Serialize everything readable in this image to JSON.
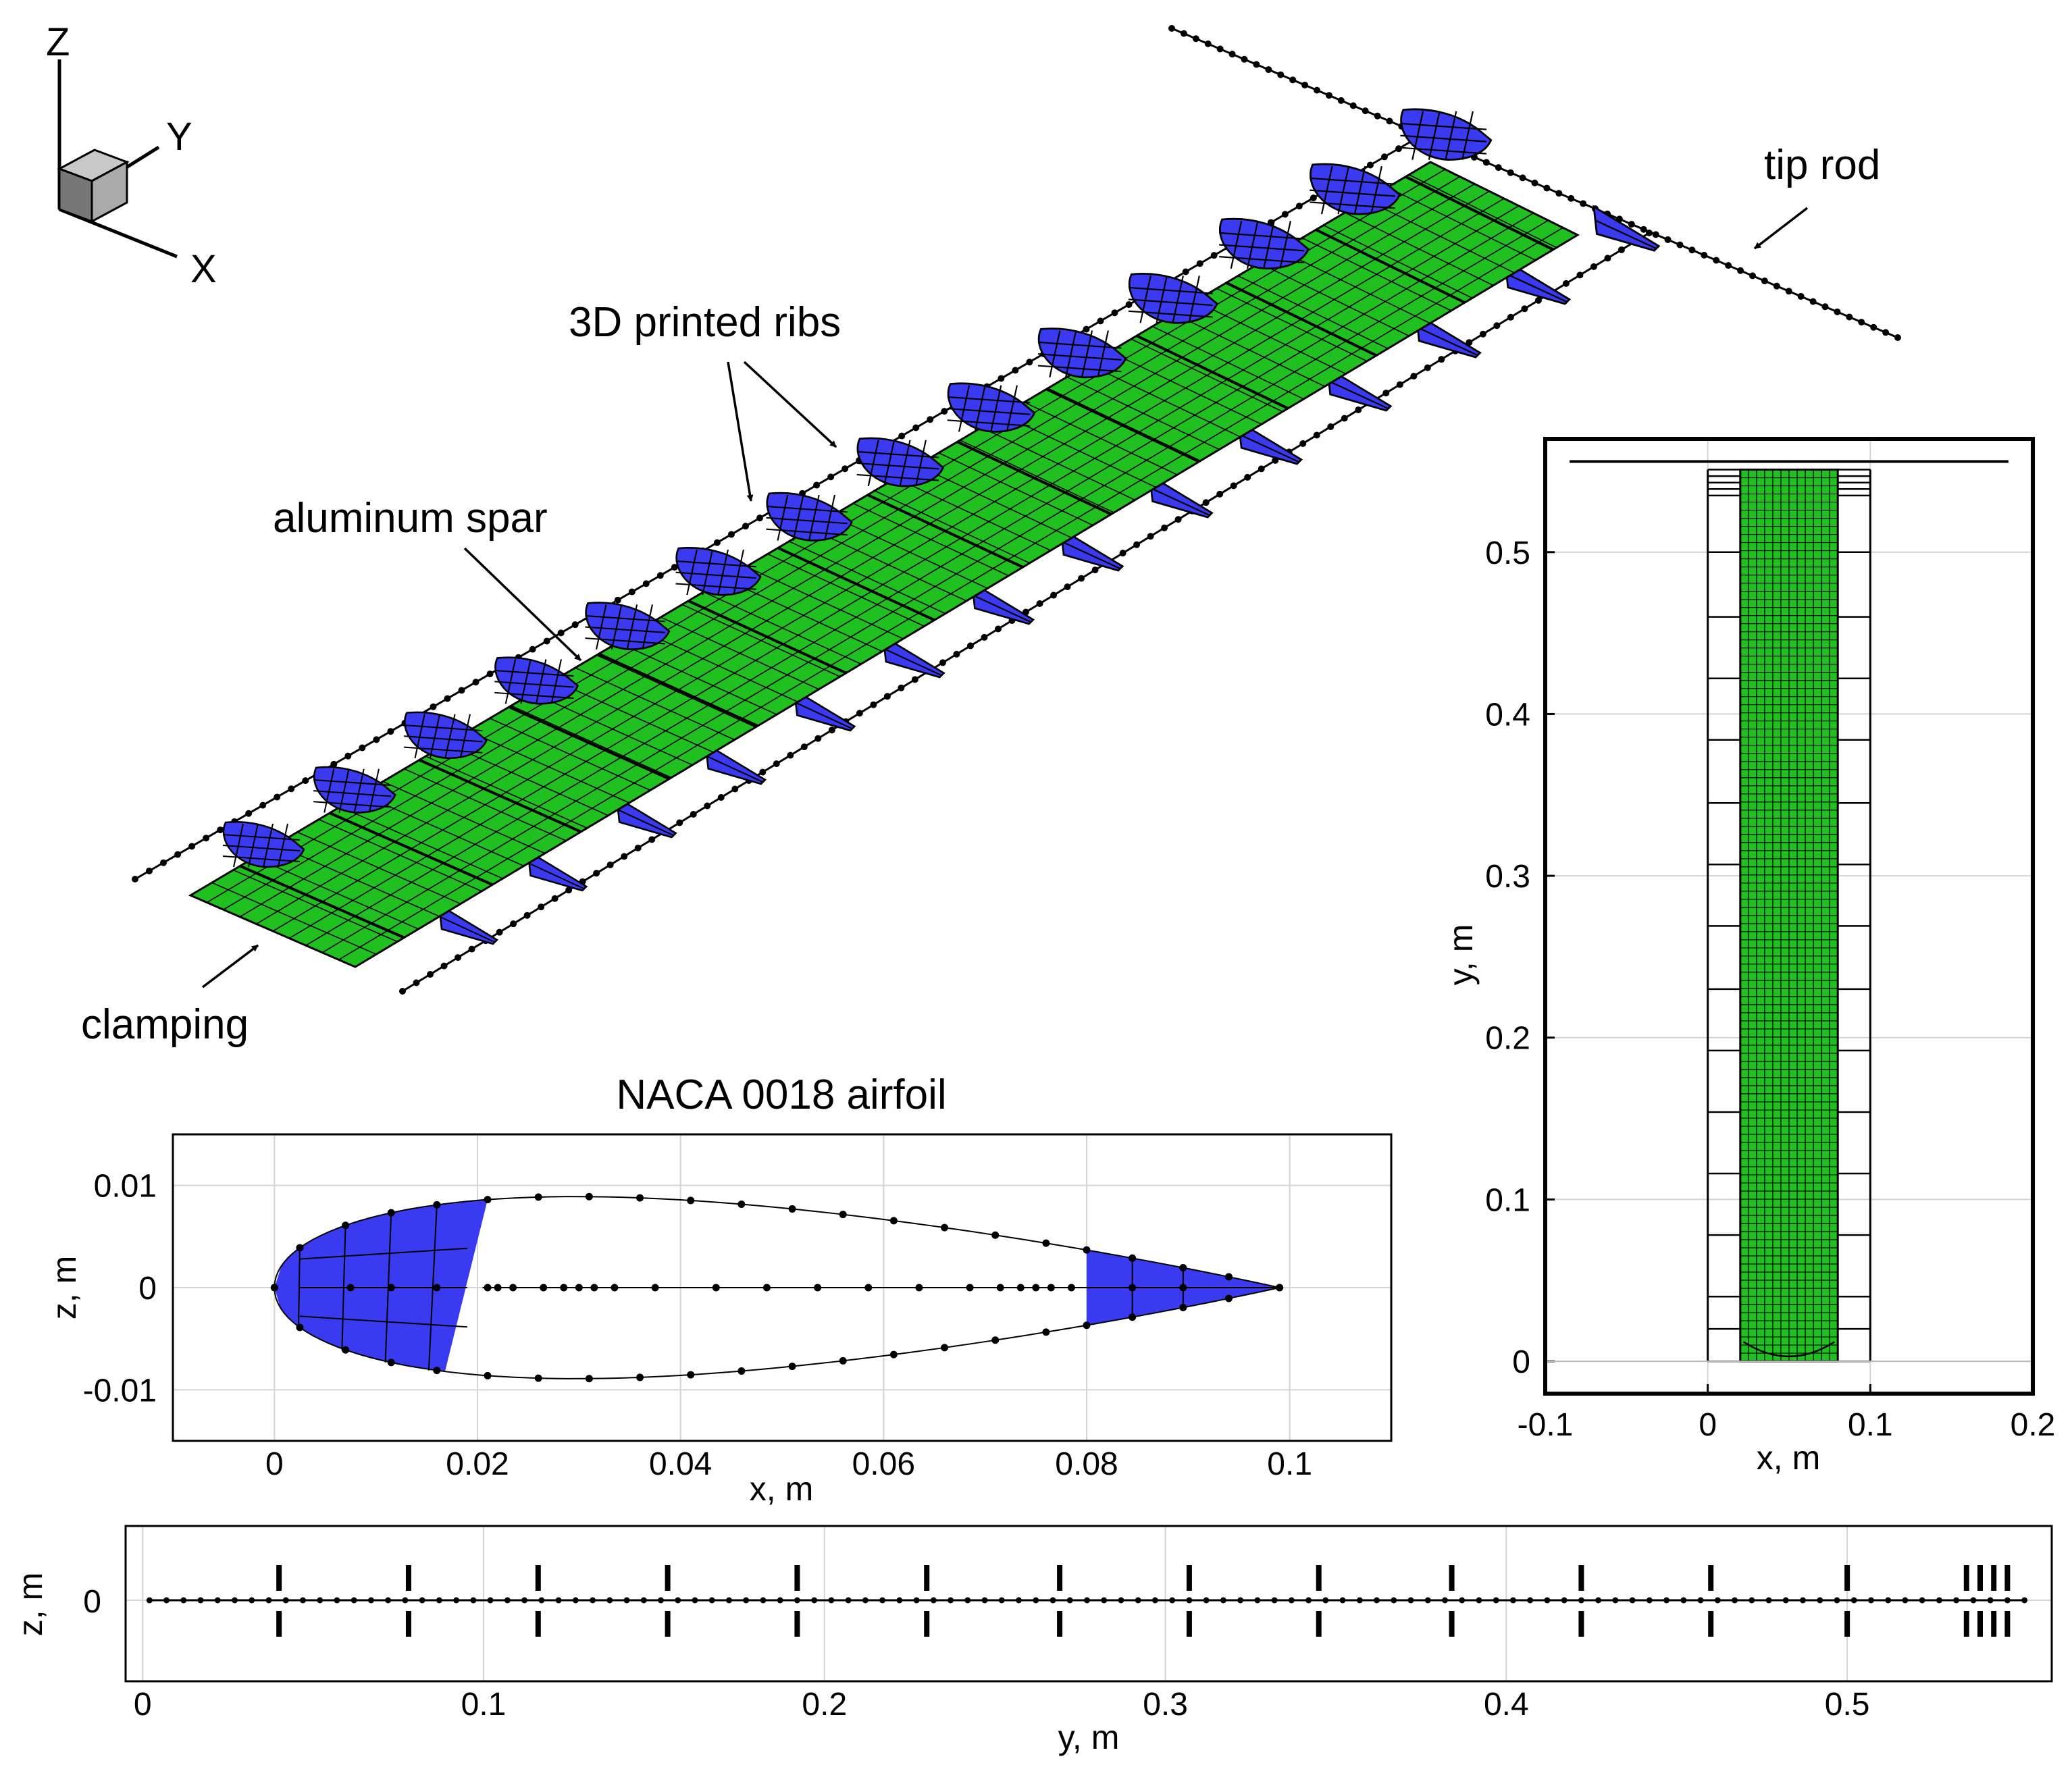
{
  "colors": {
    "rib": "#3a3af0",
    "spar": "#20c020",
    "spar_label": "#22c622",
    "rib_label": "#3535e0",
    "ink": "#000000"
  },
  "view3d": {
    "axis_z": "Z",
    "axis_y": "Y",
    "axis_x": "X",
    "label_ribs": "3D printed ribs",
    "label_spar": "aluminum spar",
    "label_clamping": "clamping",
    "label_tip_rod": "tip rod",
    "rib_count": 14
  },
  "airfoil_plot": {
    "title": "NACA 0018 airfoil",
    "xlabel": "x, m",
    "ylabel": "z, m",
    "xlim": [
      -0.01,
      0.11
    ],
    "ylim": [
      -0.015,
      0.015
    ],
    "xticks": [
      "0",
      "0.02",
      "0.04",
      "0.06",
      "0.08",
      "0.1"
    ],
    "yticks": [
      "0.01",
      "0",
      "-0.01"
    ],
    "chord": 0.099,
    "thickness_ratio": 0.18,
    "front_rib_x": [
      0,
      0.021
    ],
    "rear_rib_x": [
      0.08,
      0.099
    ]
  },
  "planform_plot": {
    "xlabel": "x, m",
    "ylabel": "y, m",
    "xlim": [
      -0.1,
      0.2
    ],
    "ylim": [
      -0.02,
      0.57
    ],
    "xticks": [
      "-0.1",
      "0",
      "0.1",
      "0.2"
    ],
    "yticks": [
      "0.5",
      "0.4",
      "0.3",
      "0.2",
      "0.1",
      "0"
    ],
    "spar_x": [
      0.02,
      0.08
    ],
    "spar_y": [
      0,
      0.551
    ],
    "rod_x": [
      0,
      0.1
    ],
    "tip_rod_x": [
      -0.085,
      0.185
    ],
    "tip_rod_y": 0.556
  },
  "span_plot": {
    "xlabel": "y, m",
    "ylabel": "z, m",
    "xlim": [
      -0.005,
      0.56
    ],
    "xticks": [
      "0",
      "0.1",
      "0.2",
      "0.3",
      "0.4",
      "0.5"
    ],
    "yticks": [
      "0"
    ],
    "rib_y": [
      0.04,
      0.078,
      0.116,
      0.154,
      0.192,
      0.23,
      0.269,
      0.307,
      0.345,
      0.384,
      0.422,
      0.46,
      0.5,
      0.535,
      0.539,
      0.543,
      0.547
    ],
    "beam_y": [
      0.002,
      0.552
    ]
  }
}
